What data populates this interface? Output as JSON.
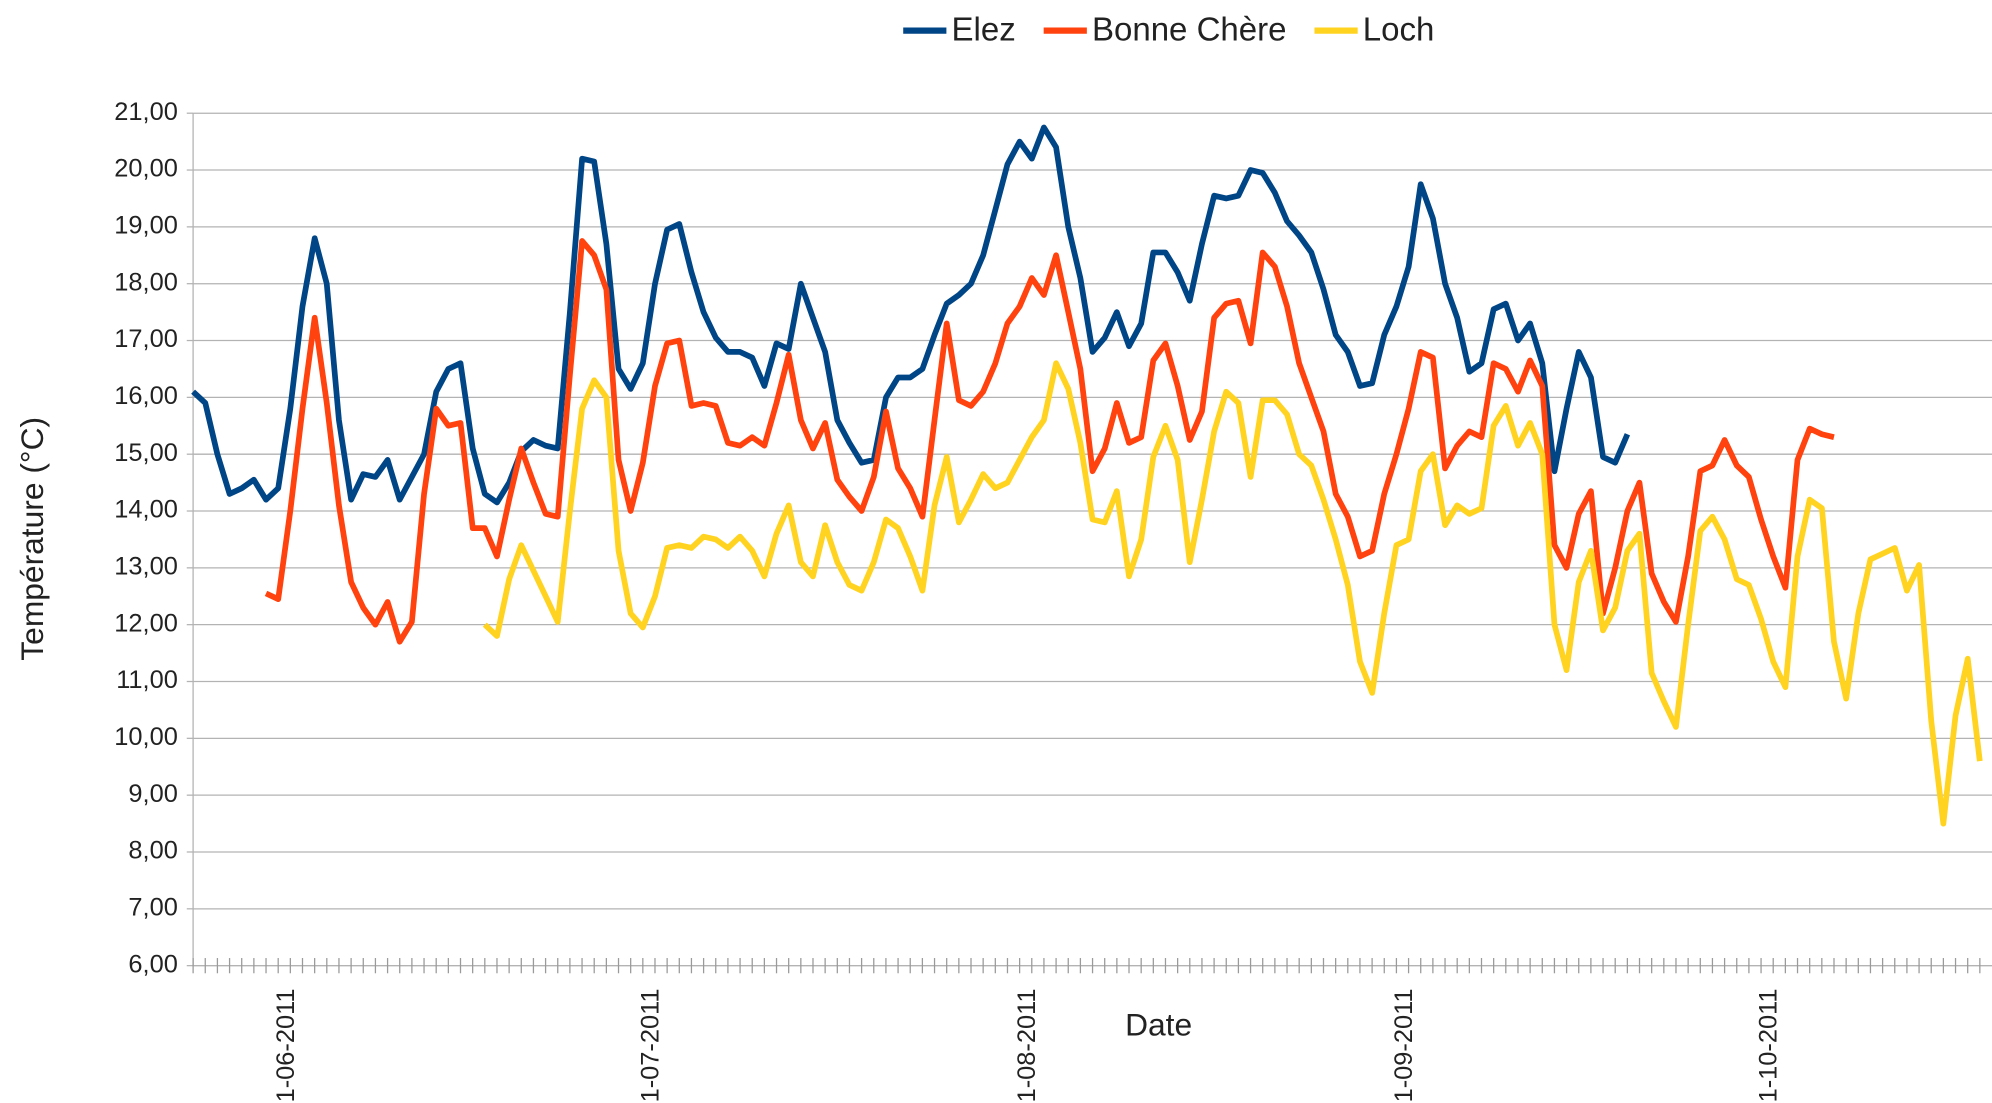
{
  "chart_data": {
    "type": "line",
    "x_label": "Date",
    "y_label": "Température (°C)",
    "categories": [
      null,
      null,
      null,
      null,
      null,
      null,
      null,
      "1-06-2011",
      null,
      null,
      null,
      null,
      null,
      null,
      null,
      null,
      null,
      null,
      null,
      null,
      null,
      null,
      null,
      null,
      null,
      null,
      null,
      null,
      null,
      null,
      null,
      null,
      null,
      null,
      null,
      null,
      null,
      "1-07-2011",
      null,
      null,
      null,
      null,
      null,
      null,
      null,
      null,
      null,
      null,
      null,
      null,
      null,
      null,
      null,
      null,
      null,
      null,
      null,
      null,
      null,
      null,
      null,
      null,
      null,
      null,
      null,
      null,
      null,
      null,
      "1-08-2011",
      null,
      null,
      null,
      null,
      null,
      null,
      null,
      null,
      null,
      null,
      null,
      null,
      null,
      null,
      null,
      null,
      null,
      null,
      null,
      null,
      null,
      null,
      null,
      null,
      null,
      null,
      null,
      null,
      null,
      null,
      "1-09-2011",
      null,
      null,
      null,
      null,
      null,
      null,
      null,
      null,
      null,
      null,
      null,
      null,
      null,
      null,
      null,
      null,
      null,
      null,
      null,
      null,
      null,
      null,
      null,
      null,
      null,
      null,
      null,
      null,
      null,
      "1-10-2011",
      null,
      null,
      null,
      null,
      null,
      null,
      null,
      null,
      null,
      null,
      null,
      null,
      null,
      null,
      null,
      null,
      null,
      null
    ],
    "series": [
      {
        "name": "Elez",
        "color": "#004586",
        "values": [
          16.1,
          15.9,
          15.0,
          14.3,
          14.4,
          14.55,
          14.2,
          14.4,
          15.8,
          17.6,
          18.8,
          18.0,
          15.6,
          14.2,
          14.65,
          14.6,
          14.9,
          14.2,
          14.6,
          15.0,
          16.1,
          16.5,
          16.6,
          15.1,
          14.3,
          14.15,
          14.5,
          15.05,
          15.25,
          15.15,
          15.1,
          17.5,
          20.2,
          20.15,
          18.7,
          16.5,
          16.15,
          16.6,
          18.0,
          18.95,
          19.05,
          18.2,
          17.5,
          17.05,
          16.8,
          16.8,
          16.7,
          16.2,
          16.95,
          16.85,
          18.0,
          17.4,
          16.8,
          15.6,
          15.2,
          14.85,
          14.9,
          16.0,
          16.35,
          16.35,
          16.5,
          17.1,
          17.65,
          17.8,
          18.0,
          18.5,
          19.3,
          20.1,
          20.5,
          20.2,
          20.75,
          20.4,
          19.0,
          18.1,
          16.8,
          17.05,
          17.5,
          16.9,
          17.3,
          18.55,
          18.55,
          18.2,
          17.7,
          18.7,
          19.55,
          19.5,
          19.55,
          20.0,
          19.95,
          19.6,
          19.1,
          18.85,
          18.55,
          17.9,
          17.1,
          16.8,
          16.2,
          16.25,
          17.1,
          17.6,
          18.3,
          19.75,
          19.15,
          18.0,
          17.4,
          16.45,
          16.6,
          17.55,
          17.65,
          17.0,
          17.3,
          16.6,
          14.7,
          15.8,
          16.8,
          16.35,
          14.95,
          14.85,
          15.35,
          null,
          null,
          null,
          null,
          null,
          null,
          null,
          null,
          null,
          null,
          null,
          null,
          null,
          null,
          null,
          null,
          null,
          null,
          null,
          null,
          null,
          null,
          null,
          null,
          null,
          null,
          null,
          null,
          null
        ]
      },
      {
        "name": "Bonne Chère",
        "color": "#ff420e",
        "values": [
          null,
          null,
          null,
          null,
          null,
          null,
          12.55,
          12.45,
          14.0,
          15.8,
          17.4,
          15.9,
          14.1,
          12.75,
          12.3,
          12.0,
          12.4,
          11.7,
          12.05,
          14.3,
          15.8,
          15.5,
          15.55,
          13.7,
          13.7,
          13.2,
          14.2,
          15.1,
          14.5,
          13.95,
          13.9,
          16.4,
          18.75,
          18.5,
          17.9,
          14.9,
          14.0,
          14.85,
          16.2,
          16.95,
          17.0,
          15.85,
          15.9,
          15.85,
          15.2,
          15.15,
          15.3,
          15.15,
          15.9,
          16.75,
          15.6,
          15.1,
          15.55,
          14.55,
          14.25,
          14.0,
          14.6,
          15.75,
          14.75,
          14.4,
          13.9,
          15.6,
          17.3,
          15.95,
          15.85,
          16.1,
          16.6,
          17.3,
          17.6,
          18.1,
          17.8,
          18.5,
          17.5,
          16.5,
          14.7,
          15.1,
          15.9,
          15.2,
          15.3,
          16.65,
          16.95,
          16.2,
          15.25,
          15.75,
          17.4,
          17.65,
          17.7,
          16.95,
          18.55,
          18.3,
          17.6,
          16.6,
          16.0,
          15.4,
          14.3,
          13.9,
          13.2,
          13.3,
          14.3,
          15.0,
          15.8,
          16.8,
          16.7,
          14.75,
          15.15,
          15.4,
          15.3,
          16.6,
          16.5,
          16.1,
          16.65,
          16.2,
          13.4,
          13.0,
          13.95,
          14.35,
          12.2,
          13.0,
          14.0,
          14.5,
          12.9,
          12.4,
          12.05,
          13.2,
          14.7,
          14.8,
          15.25,
          14.8,
          14.6,
          13.85,
          13.2,
          12.65,
          14.9,
          15.45,
          15.35,
          15.3,
          null,
          null,
          null,
          null,
          null,
          null,
          null,
          null,
          null,
          null,
          null,
          null
        ]
      },
      {
        "name": "Loch",
        "color": "#ffd320",
        "values": [
          null,
          null,
          null,
          null,
          null,
          null,
          null,
          null,
          null,
          null,
          null,
          null,
          null,
          null,
          null,
          null,
          null,
          null,
          null,
          null,
          null,
          null,
          null,
          null,
          12.0,
          11.8,
          12.8,
          13.4,
          12.95,
          12.5,
          12.05,
          14.0,
          15.8,
          16.3,
          16.0,
          13.3,
          12.2,
          11.95,
          12.5,
          13.35,
          13.4,
          13.35,
          13.55,
          13.5,
          13.35,
          13.55,
          13.3,
          12.85,
          13.6,
          14.1,
          13.1,
          12.85,
          13.75,
          13.1,
          12.7,
          12.6,
          13.1,
          13.85,
          13.7,
          13.2,
          12.6,
          14.1,
          14.95,
          13.8,
          14.2,
          14.65,
          14.4,
          14.5,
          14.9,
          15.3,
          15.6,
          16.6,
          16.15,
          15.2,
          13.85,
          13.8,
          14.35,
          12.85,
          13.5,
          14.95,
          15.5,
          14.9,
          13.1,
          14.2,
          15.4,
          16.1,
          15.9,
          14.6,
          15.95,
          15.95,
          15.7,
          15.0,
          14.8,
          14.2,
          13.5,
          12.7,
          11.35,
          10.8,
          12.2,
          13.4,
          13.5,
          14.7,
          15.0,
          13.75,
          14.1,
          13.95,
          14.05,
          15.5,
          15.85,
          15.15,
          15.55,
          15.0,
          12.0,
          11.2,
          12.75,
          13.3,
          11.9,
          12.3,
          13.3,
          13.6,
          11.15,
          10.65,
          10.2,
          12.0,
          13.65,
          13.9,
          13.5,
          12.8,
          12.7,
          12.1,
          11.35,
          10.9,
          13.2,
          14.2,
          14.05,
          11.7,
          10.7,
          12.2,
          13.15,
          13.25,
          13.35,
          12.6,
          13.05,
          10.3,
          8.5,
          10.4,
          11.4,
          9.6
        ]
      }
    ],
    "ylim": [
      6,
      21
    ],
    "yticks": [
      {
        "value": 6,
        "label": "6,00"
      },
      {
        "value": 7,
        "label": "7,00"
      },
      {
        "value": 8,
        "label": "8,00"
      },
      {
        "value": 9,
        "label": "9,00"
      },
      {
        "value": 10,
        "label": "10,00"
      },
      {
        "value": 11,
        "label": "11,00"
      },
      {
        "value": 12,
        "label": "12,00"
      },
      {
        "value": 13,
        "label": "13,00"
      },
      {
        "value": 14,
        "label": "14,00"
      },
      {
        "value": 15,
        "label": "15,00"
      },
      {
        "value": 16,
        "label": "16,00"
      },
      {
        "value": 17,
        "label": "17,00"
      },
      {
        "value": 18,
        "label": "18,00"
      },
      {
        "value": 19,
        "label": "19,00"
      },
      {
        "value": 20,
        "label": "20,00"
      },
      {
        "value": 21,
        "label": "21,00"
      }
    ],
    "grid": true,
    "legend": "top"
  }
}
